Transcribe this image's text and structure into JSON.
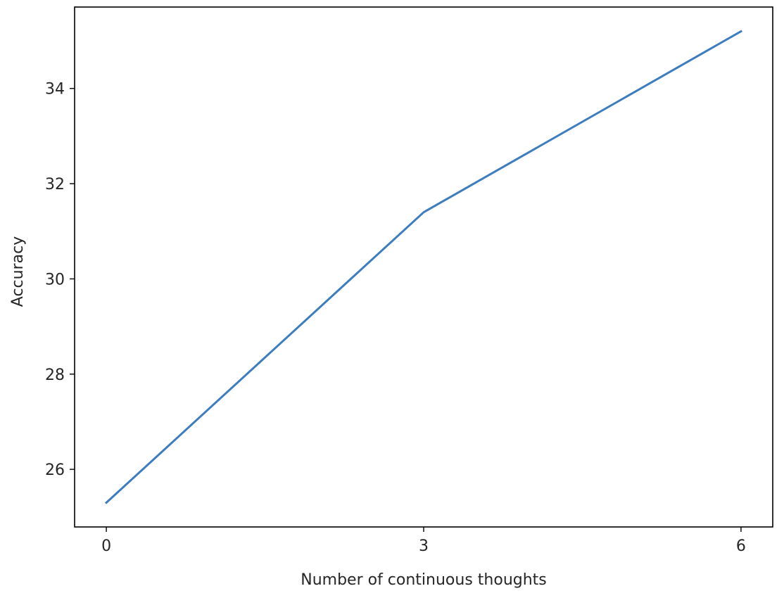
{
  "chart_data": {
    "type": "line",
    "title": "",
    "xlabel": "Number of continuous thoughts",
    "ylabel": "Accuracy",
    "x": [
      0,
      3,
      6
    ],
    "xticks": [
      0,
      3,
      6
    ],
    "yticks": [
      26,
      28,
      30,
      32,
      34
    ],
    "xlim": [
      -0.3,
      6.3
    ],
    "ylim": [
      24.79,
      35.71
    ],
    "grid": false,
    "legend": "none",
    "series": [
      {
        "values": [
          25.3,
          31.4,
          35.2
        ],
        "color": "#3d7dbf"
      }
    ]
  }
}
